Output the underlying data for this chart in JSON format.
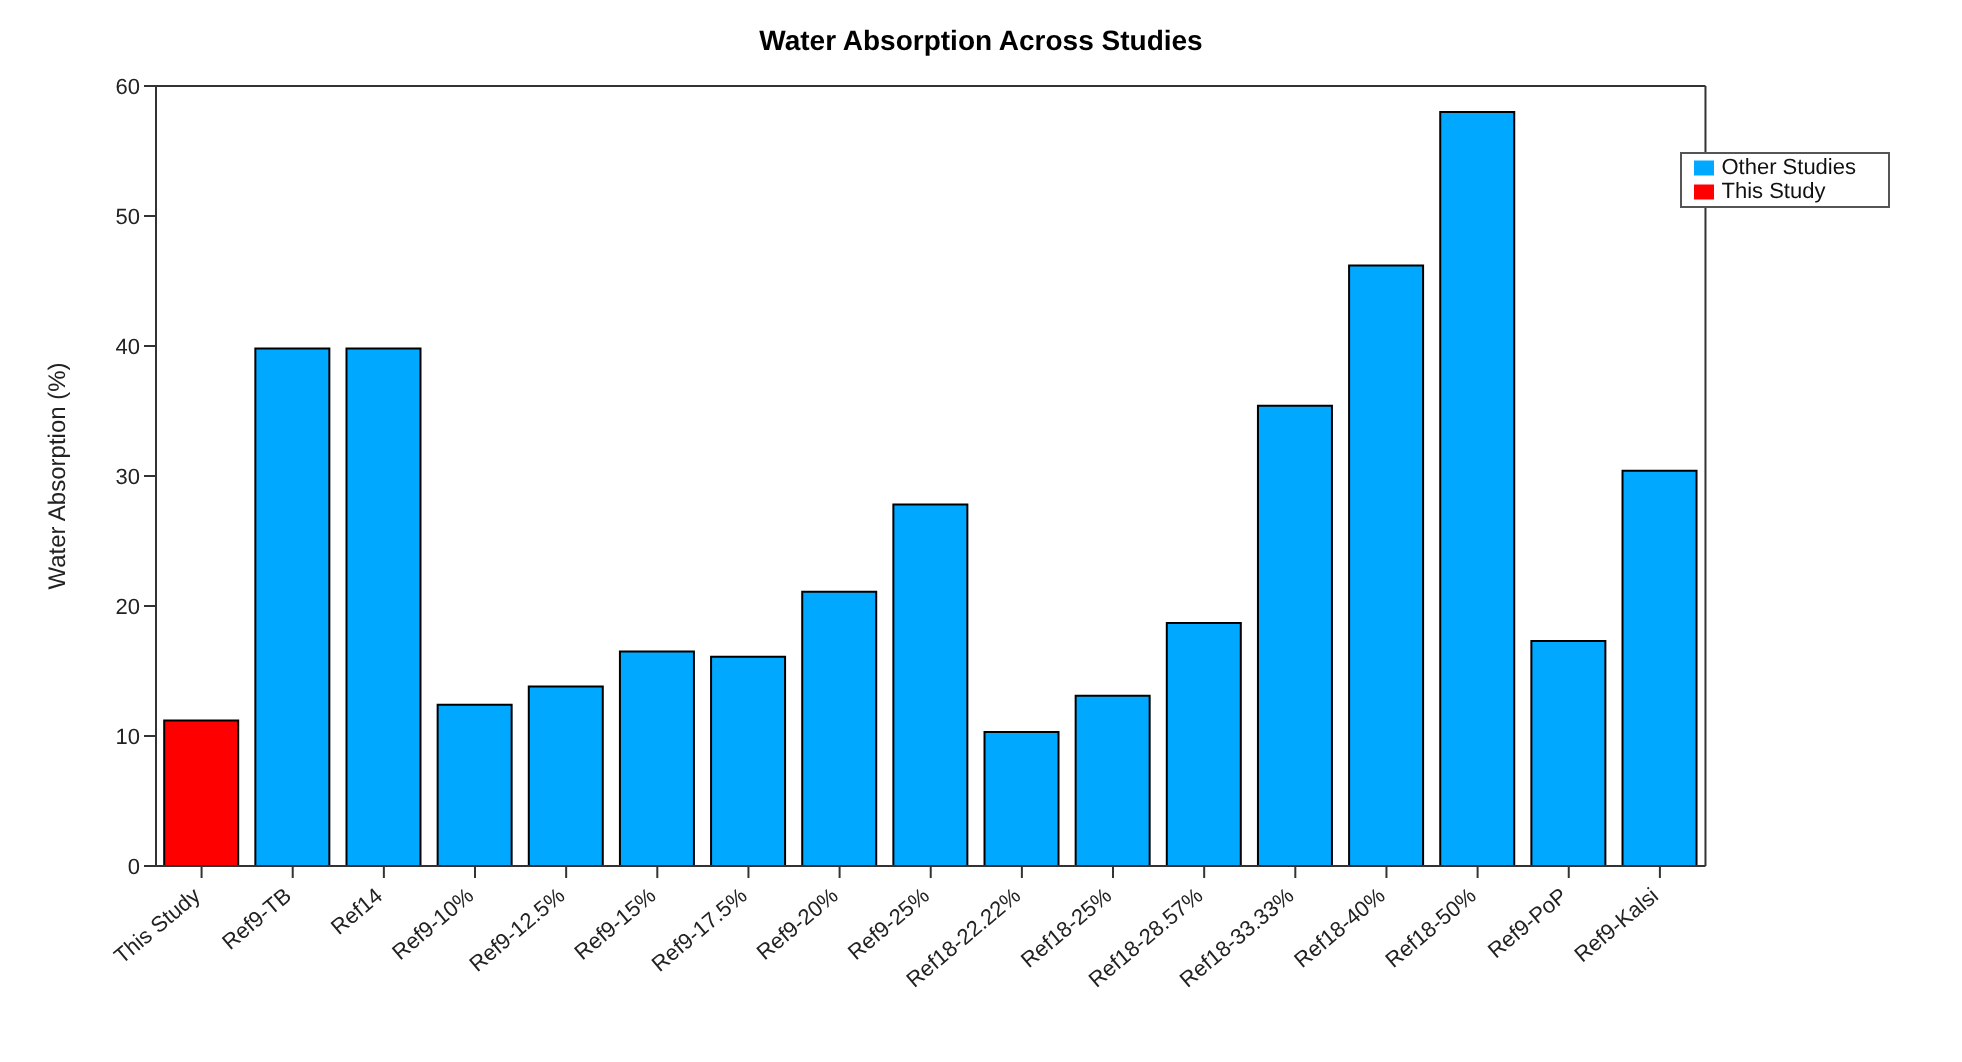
{
  "chart_data": {
    "type": "bar",
    "title": "Water Absorption Across Studies",
    "ylabel": "Water Absorption (%)",
    "categories": [
      "This Study",
      "Ref9-TB",
      "Ref14",
      "Ref9-10%",
      "Ref9-12.5%",
      "Ref9-15%",
      "Ref9-17.5%",
      "Ref9-20%",
      "Ref9-25%",
      "Ref18-22.22%",
      "Ref18-25%",
      "Ref18-28.57%",
      "Ref18-33.33%",
      "Ref18-40%",
      "Ref18-50%",
      "Ref9-PoP",
      "Ref9-Kalsi"
    ],
    "stacked": true,
    "series": [
      {
        "name": "Other Studies",
        "color": "#00a8ff",
        "values": [
          null,
          39.8,
          39.8,
          12.4,
          13.8,
          16.5,
          16.1,
          21.1,
          27.8,
          10.3,
          13.1,
          18.7,
          35.4,
          46.2,
          58,
          17.3,
          30.4
        ]
      },
      {
        "name": "This Study",
        "color": "#ff0000",
        "values": [
          11.2,
          null,
          null,
          null,
          null,
          null,
          null,
          null,
          null,
          null,
          null,
          null,
          null,
          null,
          null,
          null,
          null
        ]
      }
    ],
    "ylim": [
      0,
      60
    ],
    "yticks": [
      0,
      10,
      20,
      30,
      40,
      50,
      60
    ],
    "legend": "top right"
  }
}
